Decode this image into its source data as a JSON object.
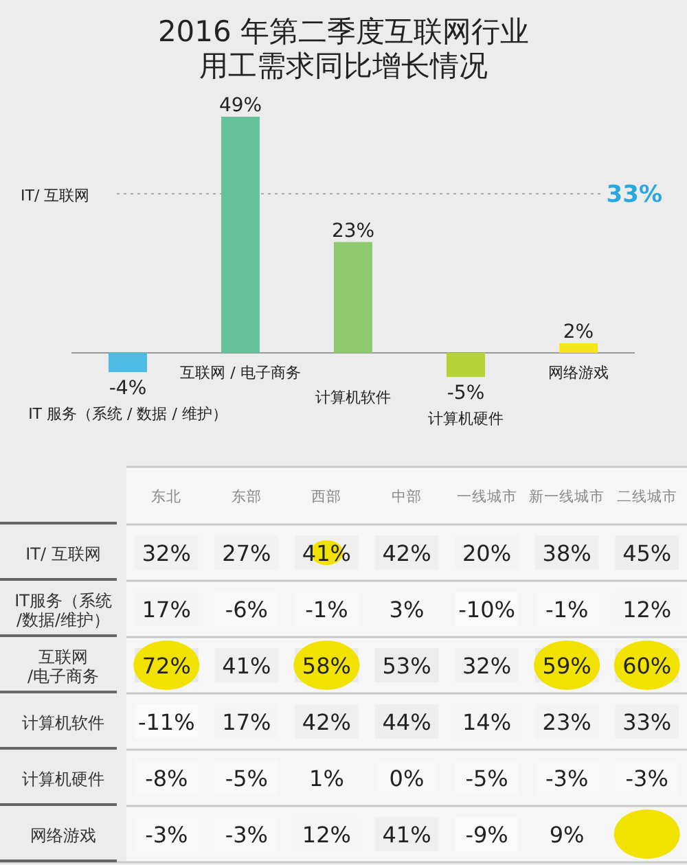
{
  "chart_data": [
    {
      "type": "bar",
      "title": "2016 年第二季度互联网行业用工需求同比增长情况",
      "categories": [
        "IT 服务（系统 / 数据 / 维护）",
        "互联网 / 电子商务",
        "计算机软件",
        "计算机硬件",
        "网络游戏"
      ],
      "values": [
        -4,
        49,
        23,
        -5,
        2
      ],
      "colors": [
        "#4dbde6",
        "#66c29a",
        "#8dc96e",
        "#b5d334",
        "#f5e51c"
      ],
      "value_labels": [
        "-4%",
        "49%",
        "23%",
        "-5%",
        "2%"
      ],
      "ref_lines": [
        {
          "axis": "y",
          "value": 33,
          "label": "IT/ 互联网",
          "color": "#aaaaaa",
          "line_style": "dotted"
        }
      ],
      "annotations": [
        "33%"
      ]
    },
    {
      "type": "heatmap",
      "categories": [
        "东北",
        "东部",
        "西部",
        "中部",
        "一线城市",
        "新一线城市",
        "二线城市"
      ],
      "y_categories": [
        "IT/ 互联网",
        "IT服务（系统/数据/维护）",
        "互联网/电子商务",
        "计算机软件",
        "计算机硬件",
        "网络游戏"
      ],
      "cells": [
        [
          32,
          27,
          41,
          42,
          20,
          38,
          45
        ],
        [
          17,
          -6,
          -1,
          3,
          -10,
          -1,
          12
        ],
        [
          72,
          41,
          58,
          53,
          32,
          59,
          60
        ],
        [
          -11,
          17,
          42,
          44,
          14,
          23,
          33
        ],
        [
          -8,
          -5,
          1,
          0,
          -5,
          -3,
          -3
        ],
        [
          -3,
          -3,
          12,
          41,
          -9,
          9,
          null
        ]
      ],
      "cell_labels": [
        [
          "32%",
          "27%",
          "41%",
          "42%",
          "20%",
          "38%",
          "45%"
        ],
        [
          "17%",
          "-6%",
          "-1%",
          "3%",
          "-10%",
          "-1%",
          "12%"
        ],
        [
          "72%",
          "41%",
          "58%",
          "53%",
          "32%",
          "59%",
          "60%"
        ],
        [
          "-11%",
          "17%",
          "42%",
          "44%",
          "14%",
          "23%",
          "33%"
        ],
        [
          "-8%",
          "-5%",
          "1%",
          "0%",
          "-5%",
          "-3%",
          "-3%"
        ],
        [
          "-3%",
          "-3%",
          "12%",
          "41%",
          "-9%",
          "9%",
          null
        ]
      ]
    }
  ]
}
